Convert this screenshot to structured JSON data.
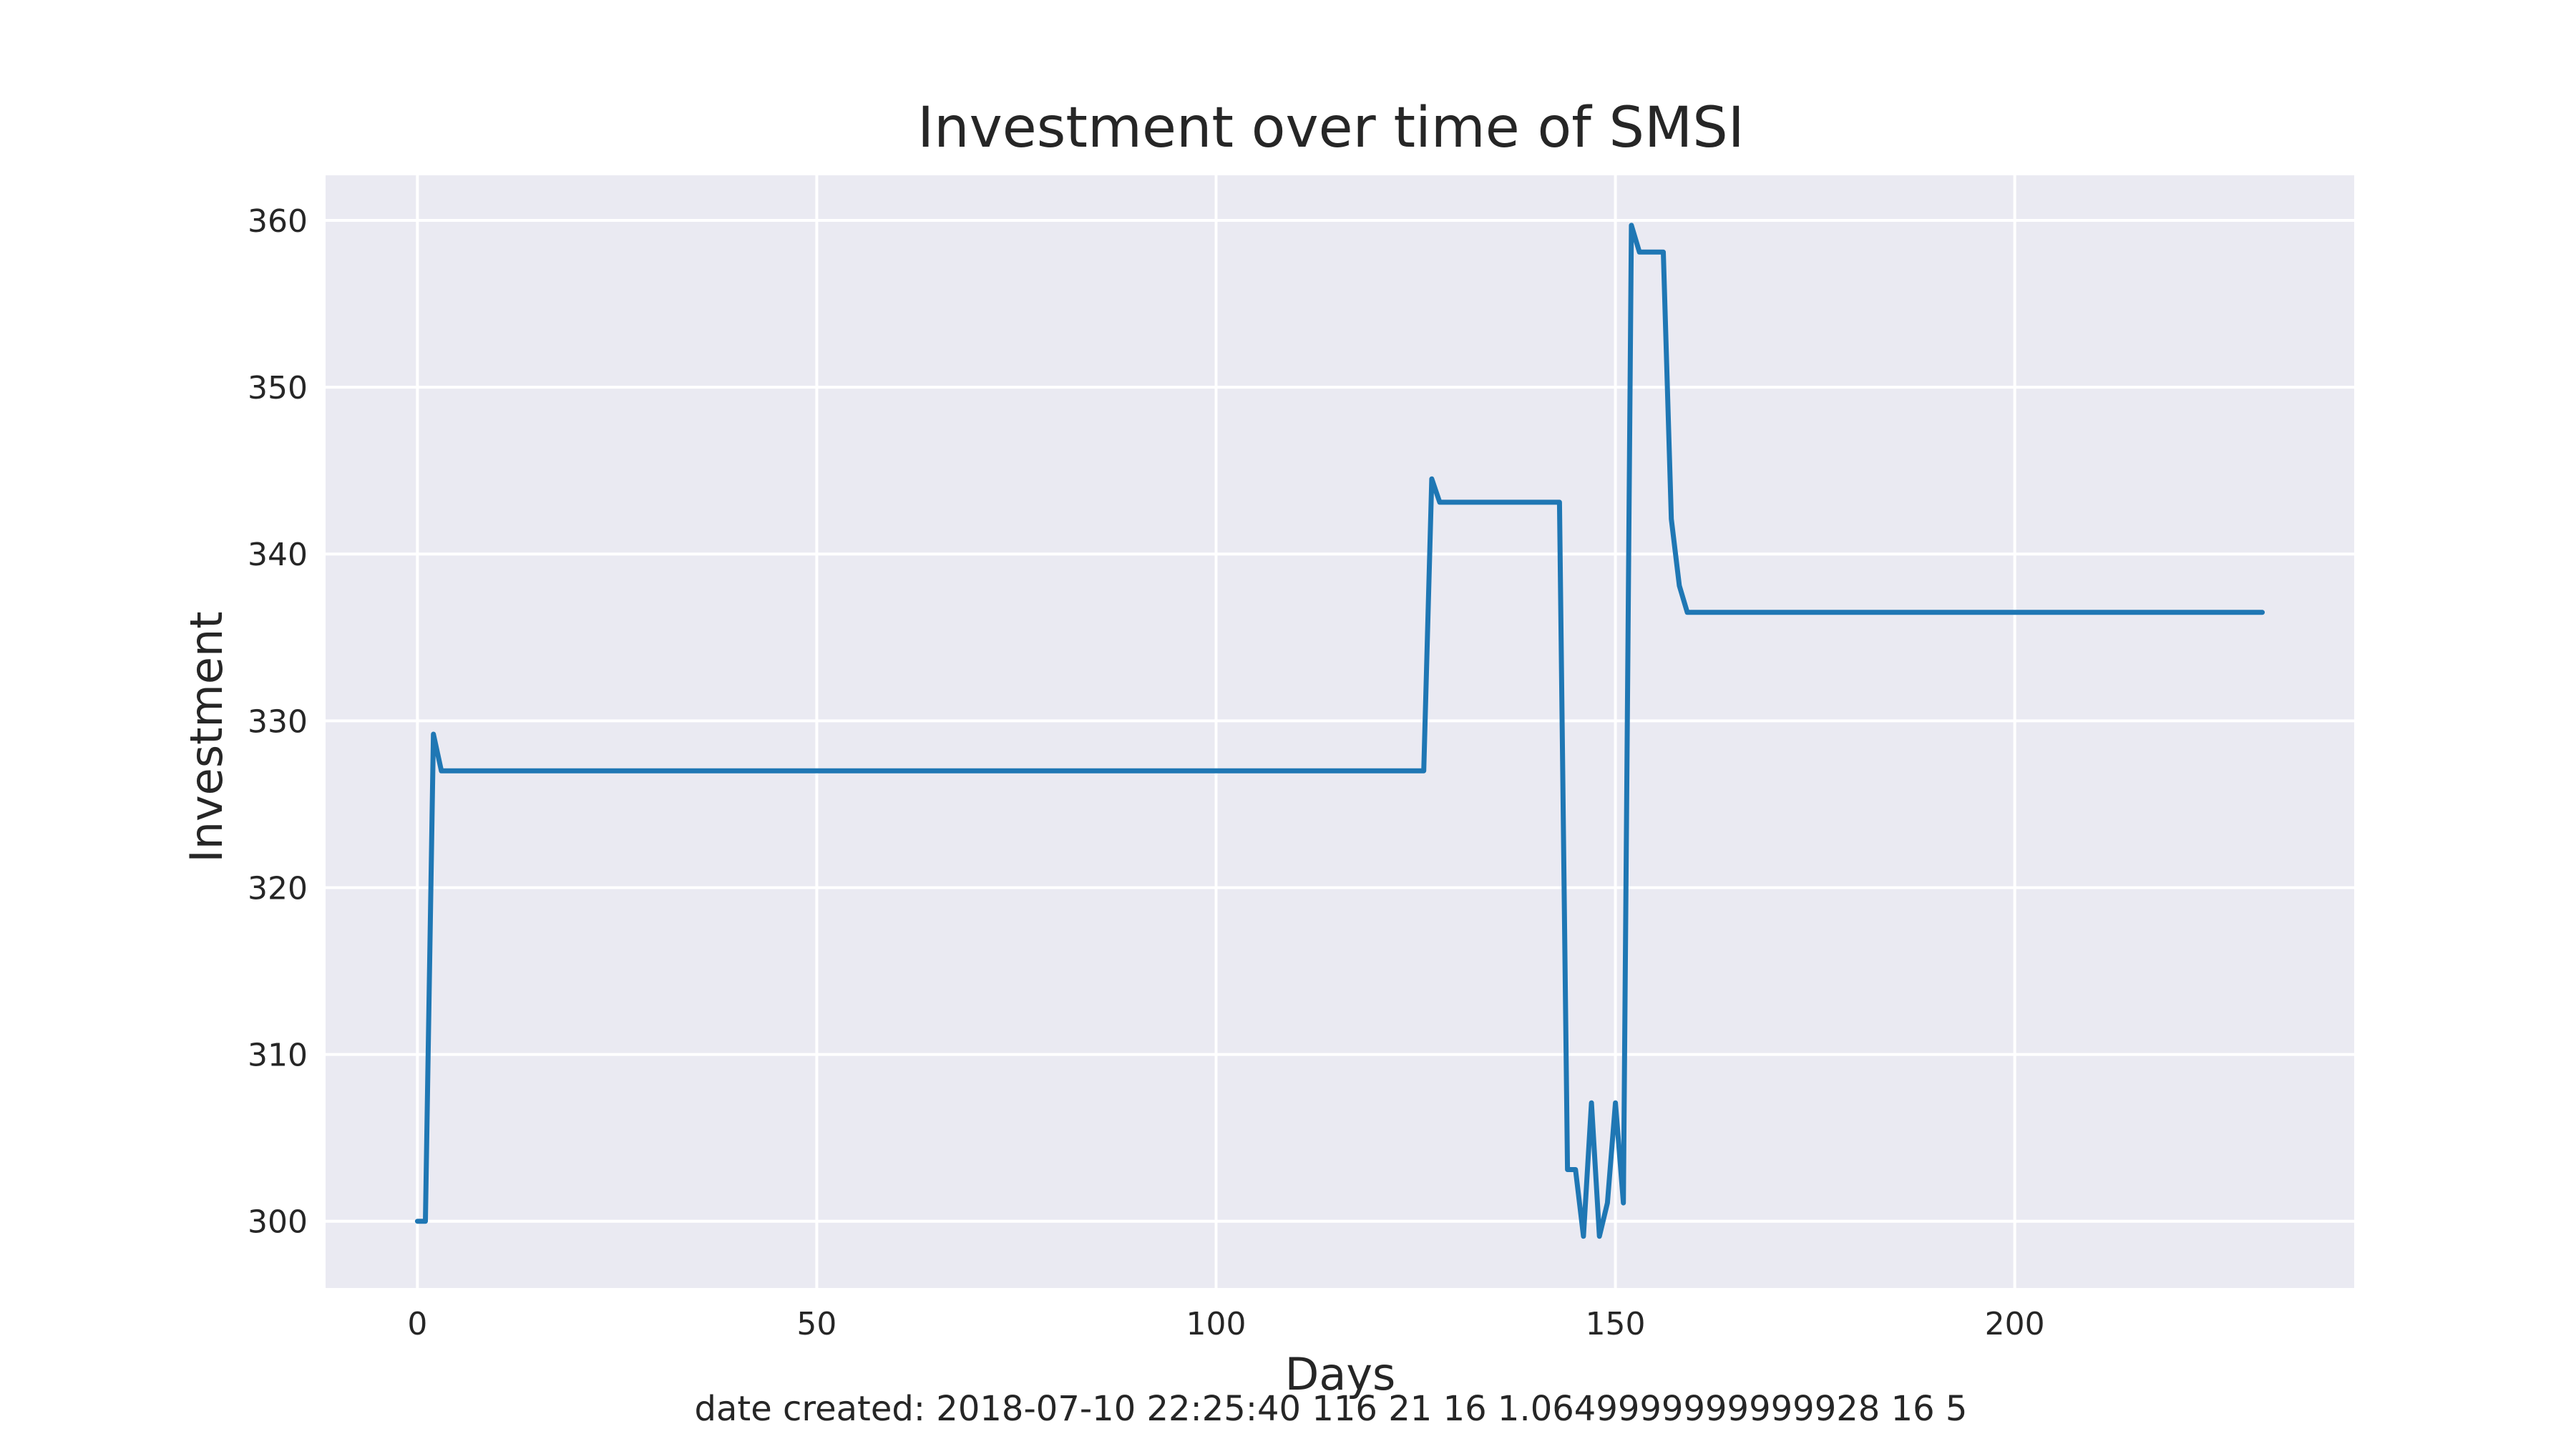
{
  "chart_data": {
    "type": "line",
    "title": "Investment over time of SMSI",
    "xlabel": "Days",
    "ylabel": "Investment",
    "caption": "date created: 2018-07-10 22:25:40 116 21 16 1.0649999999999928 16 5",
    "xlim": [
      -11.5,
      242.5
    ],
    "ylim": [
      296,
      362.7
    ],
    "xticks": [
      0,
      50,
      100,
      150,
      200
    ],
    "yticks": [
      300,
      310,
      320,
      330,
      340,
      350,
      360
    ],
    "grid": true,
    "legend": "none",
    "colors": {
      "background": "#eaeaf2",
      "grid": "#ffffff",
      "line": "#1f77b4"
    },
    "series": [
      {
        "x": [
          0,
          1,
          2,
          3,
          126,
          127,
          128,
          143,
          144,
          145,
          146,
          147,
          148,
          149,
          150,
          151,
          152,
          153,
          156,
          157,
          158,
          159,
          231
        ],
        "y": [
          300,
          300,
          329.2,
          327,
          327,
          344.5,
          343.1,
          343.1,
          303.1,
          303.1,
          299.1,
          307.1,
          299.1,
          301.1,
          307.1,
          301.1,
          359.7,
          358.1,
          358.1,
          342.1,
          338.1,
          336.5,
          336.5
        ]
      }
    ]
  }
}
